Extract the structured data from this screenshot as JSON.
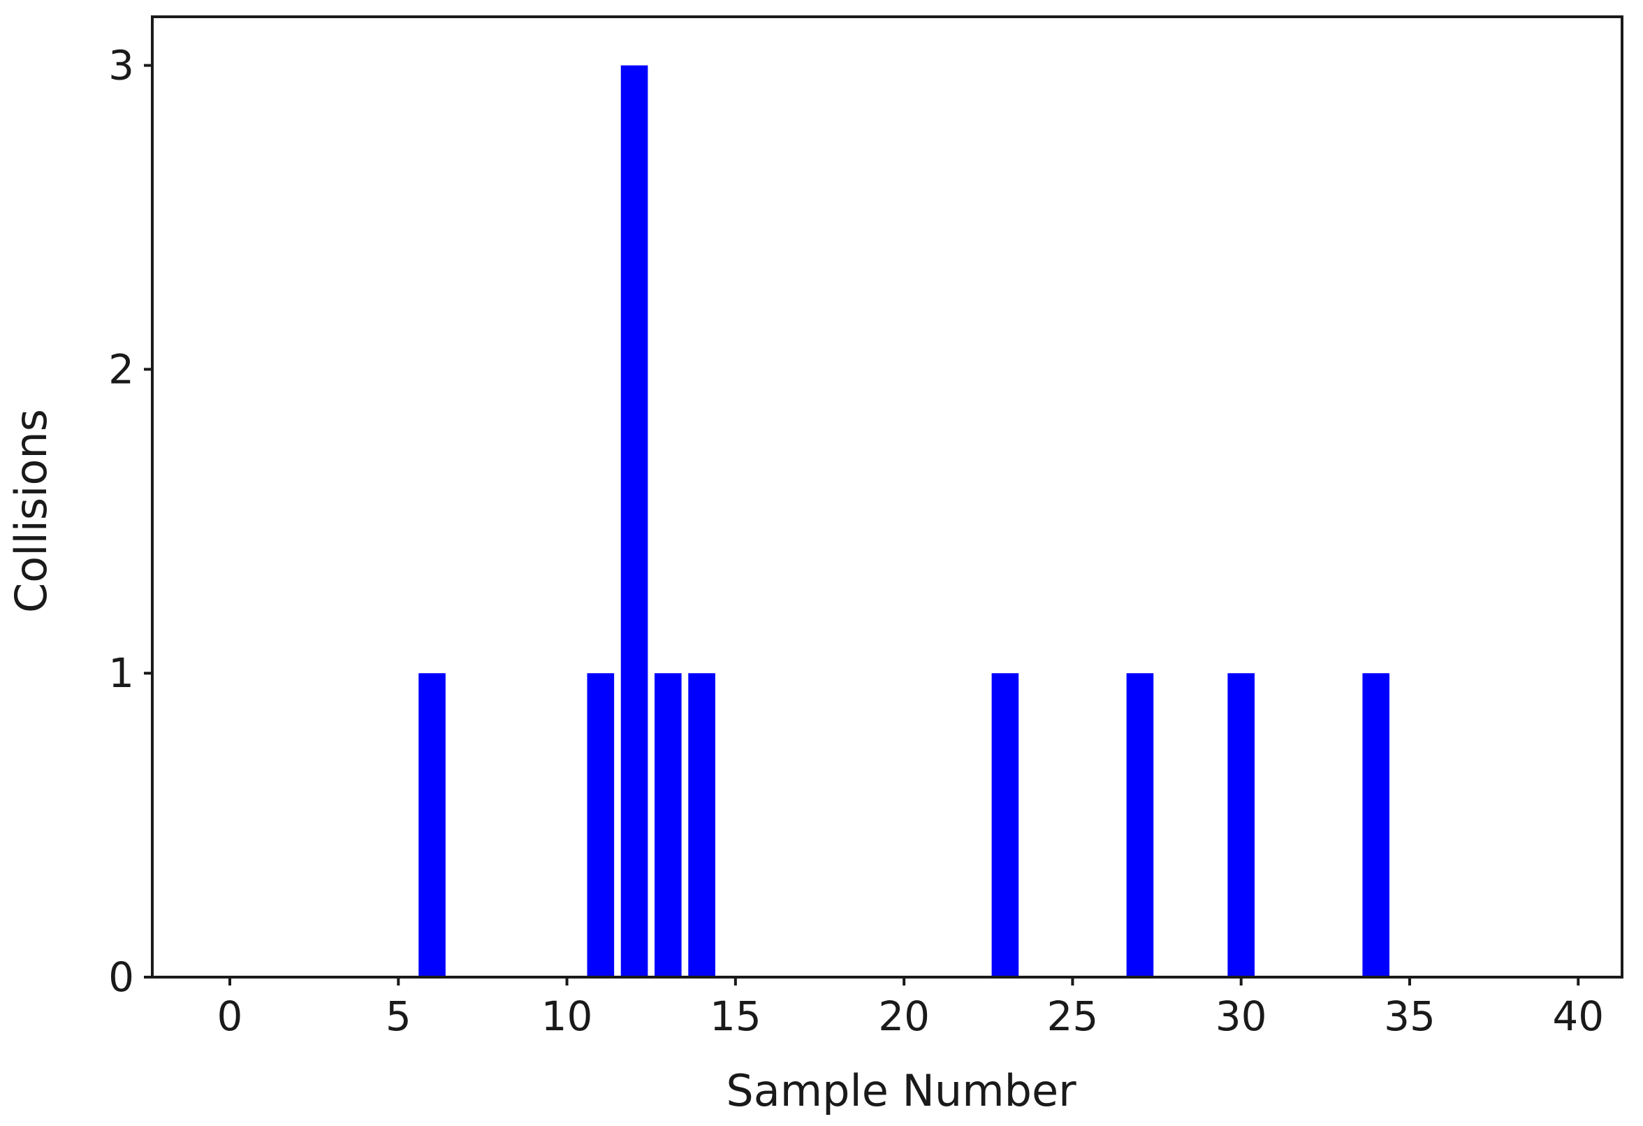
{
  "chart_data": {
    "type": "bar",
    "title": "",
    "xlabel": "Sample Number",
    "ylabel": "Collisions",
    "xlim": [
      -2.3,
      41.3
    ],
    "ylim": [
      0,
      3.16
    ],
    "xticks": [
      0,
      5,
      10,
      15,
      20,
      25,
      30,
      35,
      40
    ],
    "yticks": [
      0,
      1,
      2,
      3
    ],
    "x": [
      6,
      11,
      12,
      13,
      14,
      23,
      27,
      30,
      34
    ],
    "values": [
      1,
      1,
      3,
      1,
      1,
      1,
      1,
      1,
      1
    ],
    "bar_width": 0.8,
    "bar_color": "#0000ff",
    "grid": false,
    "legend": "none"
  }
}
